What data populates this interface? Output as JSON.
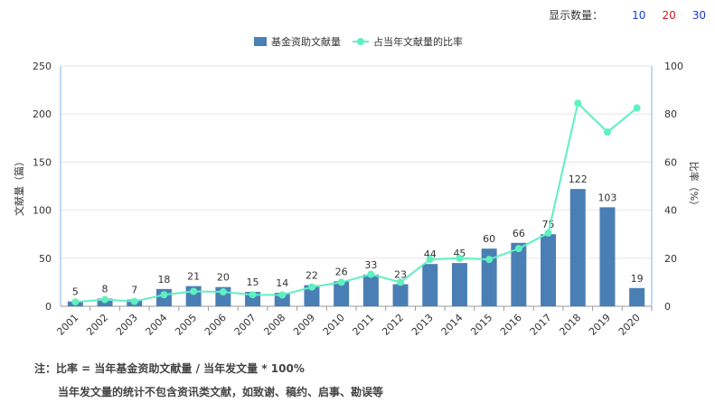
{
  "display": {
    "label": "显示数量：",
    "options": [
      "10",
      "20",
      "30"
    ]
  },
  "notes": {
    "line1": "注：比率 = 当年基金资助文献量 / 当年发文量 * 100%",
    "line2": "当年发文量的统计不包含资讯类文献，如致谢、稿约、启事、勘误等"
  },
  "colors": {
    "bar": "#4a7fb5",
    "line": "#5ef0c0",
    "axis": "#7fb6e6",
    "grid": "#e6e6e6"
  },
  "chart_data": {
    "type": "bar",
    "categories": [
      "2001",
      "2002",
      "2003",
      "2004",
      "2005",
      "2006",
      "2007",
      "2008",
      "2009",
      "2010",
      "2011",
      "2012",
      "2013",
      "2014",
      "2015",
      "2016",
      "2017",
      "2018",
      "2019",
      "2020"
    ],
    "series": [
      {
        "name": "基金资助文献量",
        "type": "bar",
        "axis": "left",
        "values": [
          5,
          8,
          7,
          18,
          21,
          20,
          15,
          14,
          22,
          26,
          33,
          23,
          44,
          45,
          60,
          66,
          75,
          122,
          103,
          19
        ]
      },
      {
        "name": "占当年文献量的比率",
        "type": "line",
        "axis": "right",
        "values": [
          1.8,
          2.8,
          2.0,
          4.8,
          6.2,
          6.0,
          4.8,
          4.7,
          8.0,
          10.0,
          13.3,
          10.0,
          19.5,
          20.0,
          19.5,
          24.0,
          30.5,
          84.5,
          72.5,
          82.5
        ]
      }
    ],
    "ylabel": "文献量（篇）",
    "y2label": "比率（%）",
    "ylim": [
      0,
      250
    ],
    "y2lim": [
      0,
      100
    ],
    "yticks": [
      "0",
      "50",
      "100",
      "150",
      "200",
      "250"
    ],
    "y2ticks": [
      "0",
      "20",
      "40",
      "60",
      "80",
      "100"
    ],
    "grid": true,
    "legend": "top-center"
  }
}
